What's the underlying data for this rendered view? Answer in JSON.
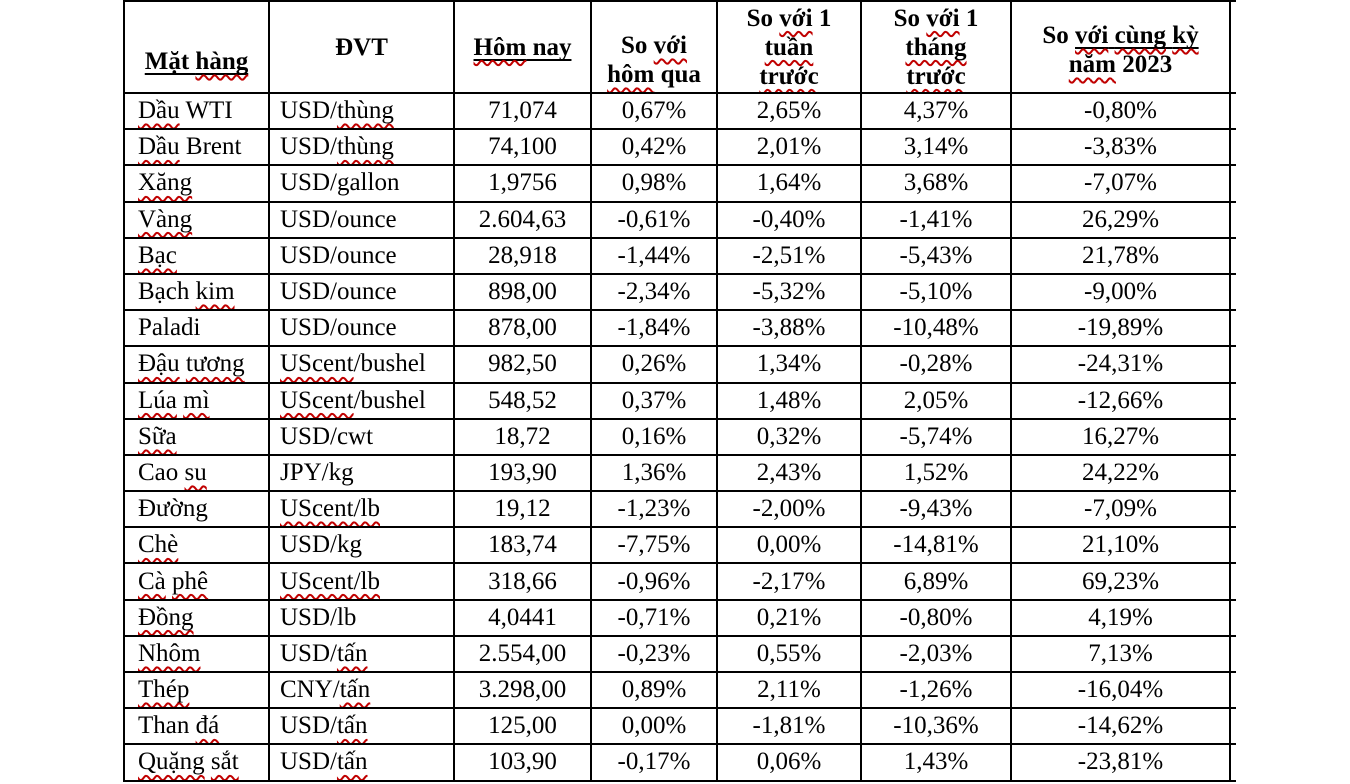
{
  "colors": {
    "background": "#ffffff",
    "text": "#000000",
    "table_border": "#000000",
    "spellcheck_wavy_underline": "#c00000",
    "header_underline": "#000000"
  },
  "table": {
    "columns": [
      {
        "label": "Mặt hàng",
        "underline": [
          "Mặt hàng"
        ],
        "wavy": [
          "hàng"
        ]
      },
      {
        "label": "ĐVT",
        "underline": [],
        "wavy": []
      },
      {
        "label": "Hôm nay",
        "underline": [
          "Hôm nay"
        ],
        "wavy": [
          "Hôm"
        ]
      },
      {
        "label": "So với\nhôm qua",
        "underline": [],
        "wavy": [
          "với",
          "hôm"
        ]
      },
      {
        "label": "So với 1\ntuần\ntrước",
        "underline": [],
        "wavy": [
          "với",
          "tuần",
          "trước"
        ]
      },
      {
        "label": "So với 1\ntháng\ntrước",
        "underline": [],
        "wavy": [
          "với",
          "tháng",
          "trước"
        ]
      },
      {
        "label": "So với cùng kỳ\nnăm 2023",
        "underline": [
          "với cùng kỳ"
        ],
        "wavy": [
          "với",
          "cùng",
          "kỳ",
          "năm"
        ]
      },
      {
        "label": "",
        "underline": [],
        "wavy": []
      }
    ],
    "rows": [
      {
        "commodity": "Dầu WTI",
        "unit": "USD/thùng",
        "today": "71,074",
        "vs_yesterday": "0,67%",
        "vs_week": "2,65%",
        "vs_month": "4,37%",
        "vs_2023": "-0,80%",
        "wavy": [
          "Dầu",
          "thùng"
        ]
      },
      {
        "commodity": "Dầu Brent",
        "unit": "USD/thùng",
        "today": "74,100",
        "vs_yesterday": "0,42%",
        "vs_week": "2,01%",
        "vs_month": "3,14%",
        "vs_2023": "-3,83%",
        "wavy": [
          "Dầu",
          "thùng"
        ]
      },
      {
        "commodity": "Xăng",
        "unit": "USD/gallon",
        "today": "1,9756",
        "vs_yesterday": "0,98%",
        "vs_week": "1,64%",
        "vs_month": "3,68%",
        "vs_2023": "-7,07%",
        "wavy": [
          "Xăng"
        ]
      },
      {
        "commodity": "Vàng",
        "unit": "USD/ounce",
        "today": "2.604,63",
        "vs_yesterday": "-0,61%",
        "vs_week": "-0,40%",
        "vs_month": "-1,41%",
        "vs_2023": "26,29%",
        "wavy": [
          "Vàng"
        ]
      },
      {
        "commodity": "Bạc",
        "unit": "USD/ounce",
        "today": "28,918",
        "vs_yesterday": "-1,44%",
        "vs_week": "-2,51%",
        "vs_month": "-5,43%",
        "vs_2023": "21,78%",
        "wavy": [
          "Bạc"
        ]
      },
      {
        "commodity": "Bạch kim",
        "unit": "USD/ounce",
        "today": "898,00",
        "vs_yesterday": "-2,34%",
        "vs_week": "-5,32%",
        "vs_month": "-5,10%",
        "vs_2023": "-9,00%",
        "wavy": [
          "kim"
        ]
      },
      {
        "commodity": "Paladi",
        "unit": "USD/ounce",
        "today": "878,00",
        "vs_yesterday": "-1,84%",
        "vs_week": "-3,88%",
        "vs_month": "-10,48%",
        "vs_2023": "-19,89%",
        "wavy": []
      },
      {
        "commodity": "Đậu tương",
        "unit": "UScent/bushel",
        "today": "982,50",
        "vs_yesterday": "0,26%",
        "vs_week": "1,34%",
        "vs_month": "-0,28%",
        "vs_2023": "-24,31%",
        "wavy": [
          "Đậu",
          "tương",
          "UScent"
        ]
      },
      {
        "commodity": "Lúa mì",
        "unit": "UScent/bushel",
        "today": "548,52",
        "vs_yesterday": "0,37%",
        "vs_week": "1,48%",
        "vs_month": "2,05%",
        "vs_2023": "-12,66%",
        "wavy": [
          "Lúa",
          "mì",
          "UScent"
        ]
      },
      {
        "commodity": "Sữa",
        "unit": "USD/cwt",
        "today": "18,72",
        "vs_yesterday": "0,16%",
        "vs_week": "0,32%",
        "vs_month": "-5,74%",
        "vs_2023": "16,27%",
        "wavy": [
          "Sữa"
        ]
      },
      {
        "commodity": "Cao su",
        "unit": "JPY/kg",
        "today": "193,90",
        "vs_yesterday": "1,36%",
        "vs_week": "2,43%",
        "vs_month": "1,52%",
        "vs_2023": "24,22%",
        "wavy": [
          "su"
        ]
      },
      {
        "commodity": "Đường",
        "unit": "UScent/lb",
        "today": "19,12",
        "vs_yesterday": "-1,23%",
        "vs_week": "-2,00%",
        "vs_month": "-9,43%",
        "vs_2023": "-7,09%",
        "wavy": [
          "UScent/lb"
        ]
      },
      {
        "commodity": "Chè",
        "unit": "USD/kg",
        "today": "183,74",
        "vs_yesterday": "-7,75%",
        "vs_week": "0,00%",
        "vs_month": "-14,81%",
        "vs_2023": "21,10%",
        "wavy": [
          "Chè"
        ]
      },
      {
        "commodity": "Cà phê",
        "unit": "UScent/lb",
        "today": "318,66",
        "vs_yesterday": "-0,96%",
        "vs_week": "-2,17%",
        "vs_month": "6,89%",
        "vs_2023": "69,23%",
        "wavy": [
          "Cà",
          "phê",
          "UScent/lb"
        ]
      },
      {
        "commodity": "Đồng",
        "unit": "USD/lb",
        "today": "4,0441",
        "vs_yesterday": "-0,71%",
        "vs_week": "0,21%",
        "vs_month": "-0,80%",
        "vs_2023": "4,19%",
        "wavy": [
          "Đồng"
        ]
      },
      {
        "commodity": "Nhôm",
        "unit": "USD/tấn",
        "today": "2.554,00",
        "vs_yesterday": "-0,23%",
        "vs_week": "0,55%",
        "vs_month": "-2,03%",
        "vs_2023": "7,13%",
        "wavy": [
          "Nhôm",
          "tấn"
        ]
      },
      {
        "commodity": "Thép",
        "unit": "CNY/tấn",
        "today": "3.298,00",
        "vs_yesterday": "0,89%",
        "vs_week": "2,11%",
        "vs_month": "-1,26%",
        "vs_2023": "-16,04%",
        "wavy": [
          "Thép",
          "tấn"
        ]
      },
      {
        "commodity": "Than đá",
        "unit": "USD/tấn",
        "today": "125,00",
        "vs_yesterday": "0,00%",
        "vs_week": "-1,81%",
        "vs_month": "-10,36%",
        "vs_2023": "-14,62%",
        "wavy": [
          "đá",
          "tấn"
        ]
      },
      {
        "commodity": "Quặng sắt",
        "unit": "USD/tấn",
        "today": "103,90",
        "vs_yesterday": "-0,17%",
        "vs_week": "0,06%",
        "vs_month": "1,43%",
        "vs_2023": "-23,81%",
        "wavy": [
          "Quặng",
          "sắt",
          "tấn"
        ]
      }
    ]
  }
}
